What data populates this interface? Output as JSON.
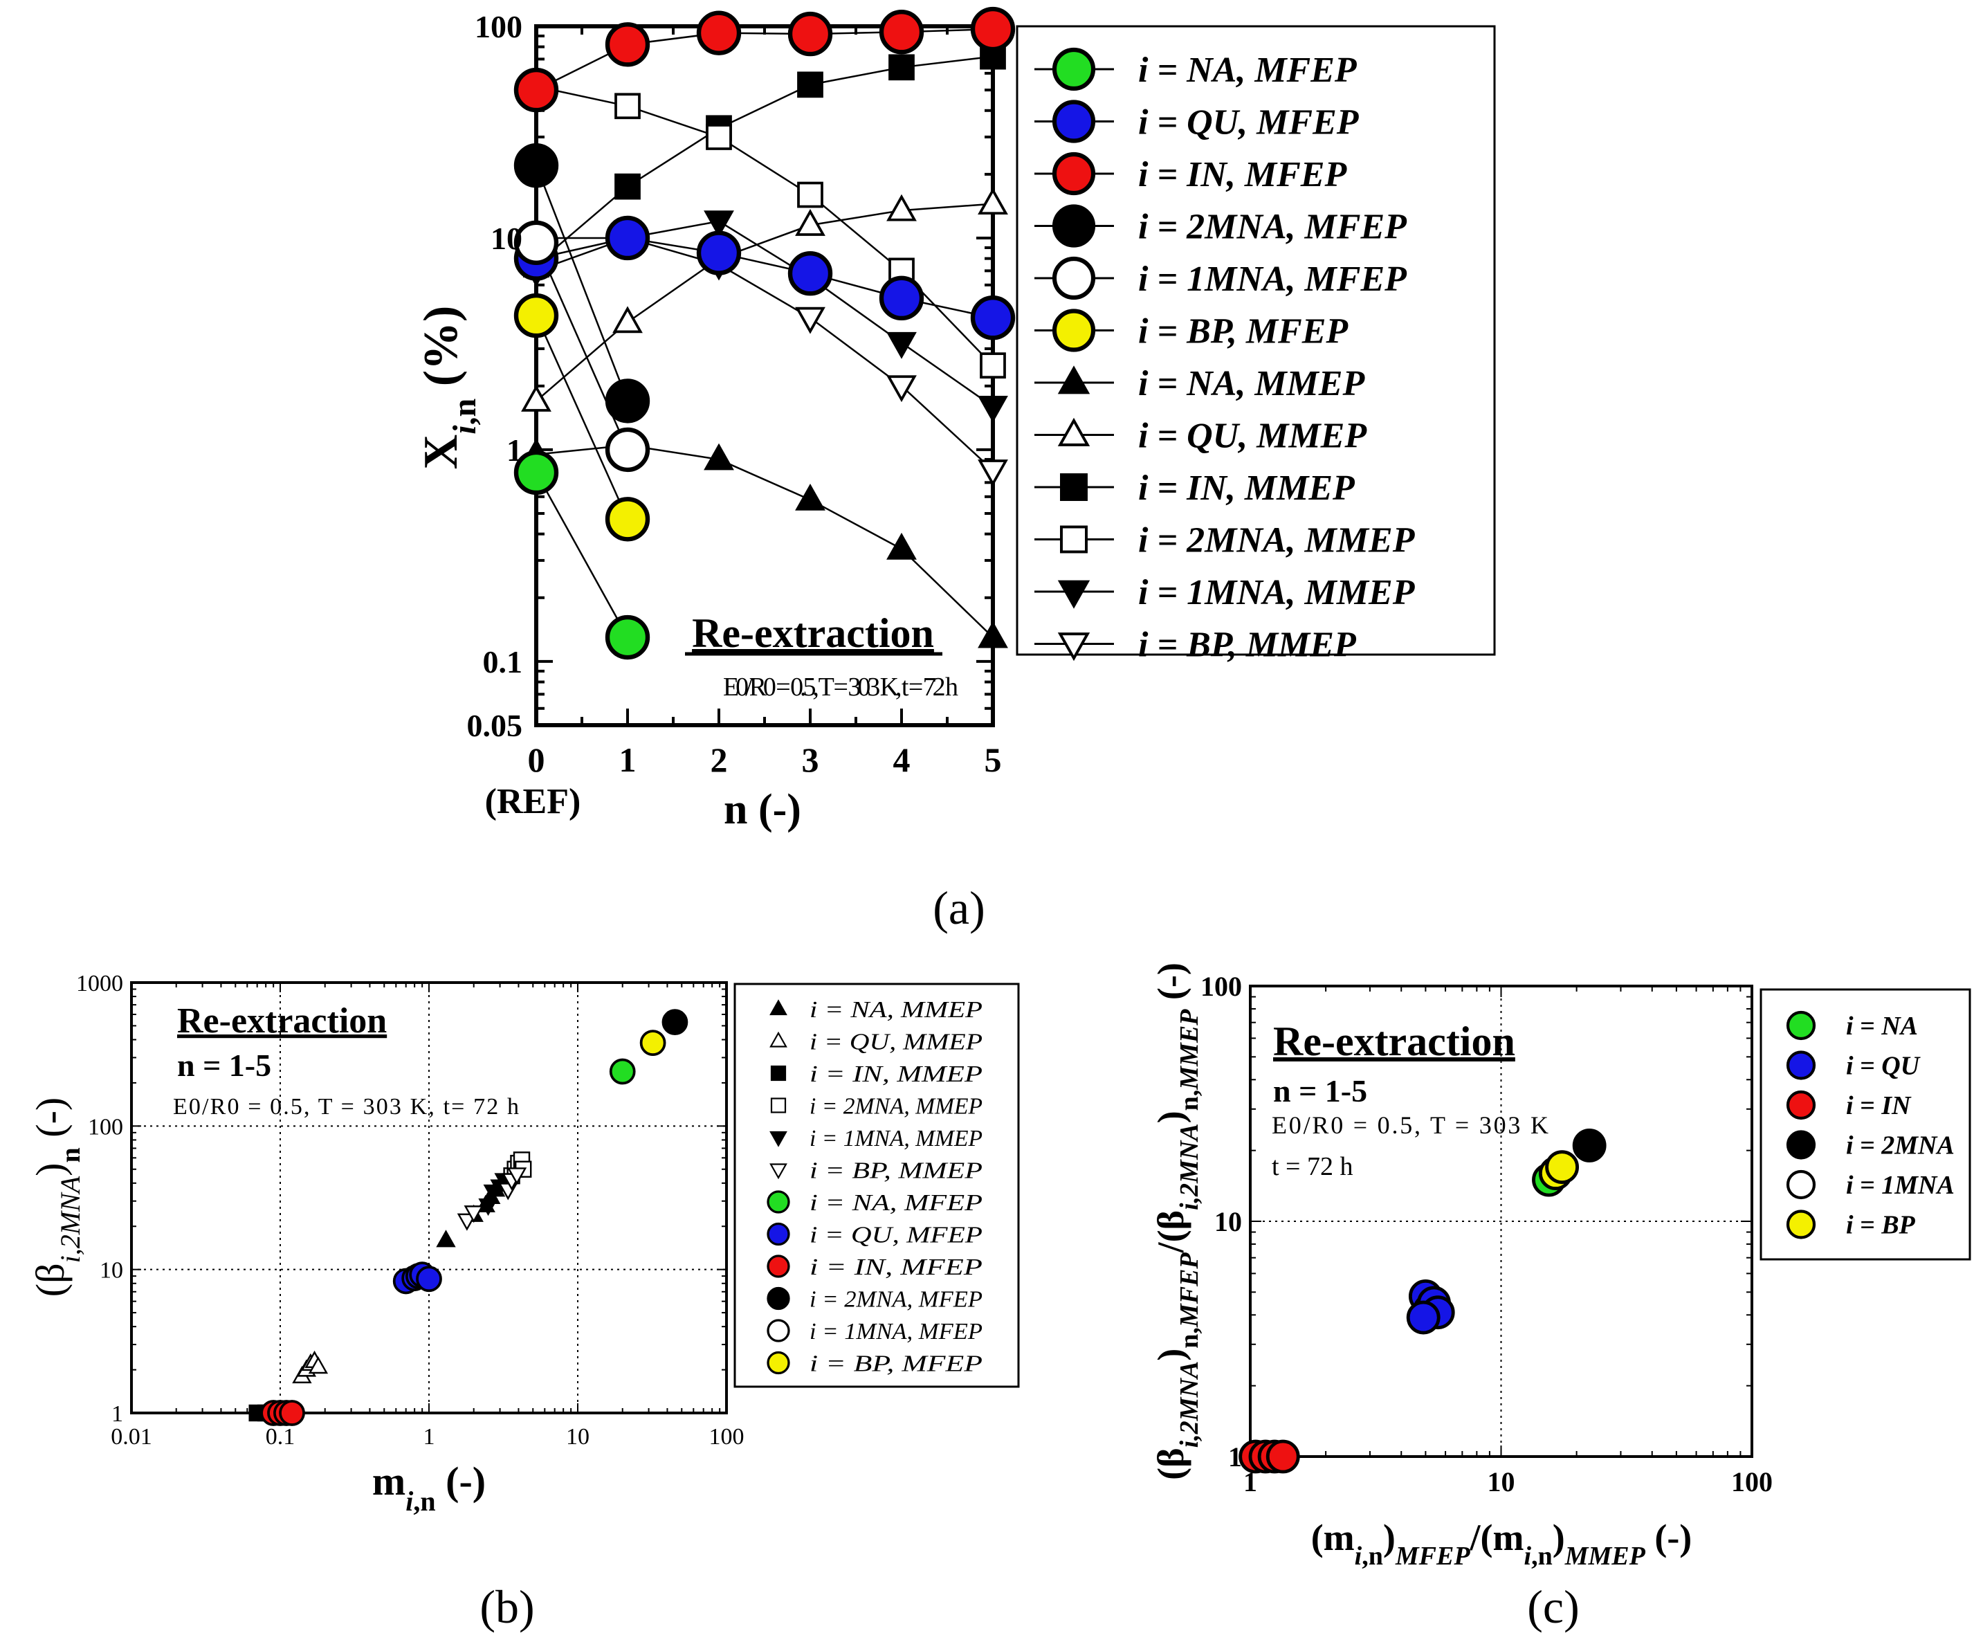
{
  "colors": {
    "NA": "#22dd22",
    "QU": "#1515e6",
    "IN": "#ee1111",
    "2MNA": "#000000",
    "1MNA": "#ffffff",
    "BP": "#f4f000"
  },
  "panels": {
    "a": {
      "label": "(a)",
      "title": "Re-extraction",
      "conditions": "E0/R0 = 0.5, T = 303 K, t = 72 h",
      "ref_label": "(REF)",
      "legend": [
        {
          "series": "NA_MFEP",
          "text": "i = NA, MFEP",
          "symbol": "circle",
          "color": "NA"
        },
        {
          "series": "QU_MFEP",
          "text": "i = QU, MFEP",
          "symbol": "circle",
          "color": "QU"
        },
        {
          "series": "IN_MFEP",
          "text": "i = IN, MFEP",
          "symbol": "circle",
          "color": "IN"
        },
        {
          "series": "2MNA_MFEP",
          "text": "i = 2MNA, MFEP",
          "symbol": "circle",
          "color": "2MNA"
        },
        {
          "series": "1MNA_MFEP",
          "text": "i = 1MNA, MFEP",
          "symbol": "circle",
          "color": "1MNA"
        },
        {
          "series": "BP_MFEP",
          "text": "i = BP, MFEP",
          "symbol": "circle",
          "color": "BP"
        },
        {
          "series": "NA_MMEP",
          "text": "i = NA, MMEP",
          "symbol": "tri-up-filled"
        },
        {
          "series": "QU_MMEP",
          "text": "i = QU, MMEP",
          "symbol": "tri-up-open"
        },
        {
          "series": "IN_MMEP",
          "text": "i = IN, MMEP",
          "symbol": "square-filled"
        },
        {
          "series": "2MNA_MMEP",
          "text": "i = 2MNA, MMEP",
          "symbol": "square-open"
        },
        {
          "series": "1MNA_MMEP",
          "text": "i = 1MNA, MMEP",
          "symbol": "tri-down-filled"
        },
        {
          "series": "BP_MMEP",
          "text": "i = BP, MMEP",
          "symbol": "tri-down-open"
        }
      ]
    },
    "b": {
      "label": "(b)",
      "title": "Re-extraction",
      "subtitle": "n = 1-5",
      "conditions": "E0/R0 = 0.5, T = 303 K, t= 72 h",
      "legend": [
        {
          "text": "i = NA, MMEP",
          "symbol": "tri-up-filled"
        },
        {
          "text": "i = QU, MMEP",
          "symbol": "tri-up-open"
        },
        {
          "text": "i = IN, MMEP",
          "symbol": "square-filled"
        },
        {
          "text": "i = 2MNA, MMEP",
          "symbol": "square-open"
        },
        {
          "text": "i = 1MNA, MMEP",
          "symbol": "tri-down-filled"
        },
        {
          "text": "i = BP, MMEP",
          "symbol": "tri-down-open"
        },
        {
          "text": "i = NA, MFEP",
          "symbol": "circle",
          "color": "NA"
        },
        {
          "text": "i = QU, MFEP",
          "symbol": "circle",
          "color": "QU"
        },
        {
          "text": "i = IN, MFEP",
          "symbol": "circle",
          "color": "IN"
        },
        {
          "text": "i = 2MNA, MFEP",
          "symbol": "circle",
          "color": "2MNA"
        },
        {
          "text": "i = 1MNA, MFEP",
          "symbol": "circle",
          "color": "1MNA"
        },
        {
          "text": "i = BP, MFEP",
          "symbol": "circle",
          "color": "BP"
        }
      ]
    },
    "c": {
      "label": "(c)",
      "title": "Re-extraction",
      "subtitle": "n = 1-5",
      "conditions": "E0/R0 = 0.5, T = 303 K",
      "time": "t = 72 h",
      "legend": [
        {
          "text": "i = NA",
          "color": "NA"
        },
        {
          "text": "i = QU",
          "color": "QU"
        },
        {
          "text": "i = IN",
          "color": "IN"
        },
        {
          "text": "i = 2MNA",
          "color": "2MNA"
        },
        {
          "text": "i = 1MNA",
          "color": "1MNA"
        },
        {
          "text": "i = BP",
          "color": "BP"
        }
      ]
    }
  },
  "chart_data": [
    {
      "id": "a",
      "type": "line",
      "xlabel": "n (-)",
      "ylabel": "Xi,n (%)",
      "yscale": "log",
      "xlim": [
        0,
        5
      ],
      "ylim": [
        0.05,
        100
      ],
      "x": [
        0,
        1,
        2,
        3,
        4,
        5
      ],
      "xticks": [
        "0",
        "1",
        "2",
        "3",
        "4",
        "5"
      ],
      "yticks": [
        "0.05",
        "0.1",
        "1",
        "10",
        "100"
      ],
      "series": [
        {
          "name": "NA_MFEP",
          "x": [
            0,
            1
          ],
          "values": [
            0.78,
            0.13
          ]
        },
        {
          "name": "QU_MFEP",
          "x": [
            0,
            1,
            2,
            3,
            4,
            5
          ],
          "values": [
            8,
            10,
            8.5,
            6.8,
            5.2,
            4.2
          ]
        },
        {
          "name": "IN_MFEP",
          "x": [
            0,
            1,
            2,
            3,
            4,
            5
          ],
          "values": [
            50,
            82,
            93,
            92,
            94,
            97
          ]
        },
        {
          "name": "2MNA_MFEP",
          "x": [
            0,
            1
          ],
          "values": [
            22,
            1.7
          ]
        },
        {
          "name": "1MNA_MFEP",
          "x": [
            0,
            1
          ],
          "values": [
            9.5,
            1.0
          ]
        },
        {
          "name": "BP_MFEP",
          "x": [
            0,
            1
          ],
          "values": [
            4.3,
            0.47
          ]
        },
        {
          "name": "NA_MMEP",
          "x": [
            0,
            1,
            2,
            3,
            4,
            5
          ],
          "values": [
            0.95,
            1.05,
            0.9,
            0.58,
            0.34,
            0.13
          ]
        },
        {
          "name": "QU_MMEP",
          "x": [
            0,
            1,
            2,
            3,
            4,
            5
          ],
          "values": [
            1.7,
            4.0,
            8.0,
            11.5,
            13.5,
            14.5
          ]
        },
        {
          "name": "IN_MMEP",
          "x": [
            0,
            1,
            2,
            3,
            4,
            5
          ],
          "values": [
            7.5,
            17.5,
            33,
            53,
            64,
            72
          ]
        },
        {
          "name": "2MNA_MMEP",
          "x": [
            0,
            1,
            2,
            3,
            4,
            5
          ],
          "values": [
            52,
            42,
            30,
            16,
            7,
            2.5
          ]
        },
        {
          "name": "1MNA_MMEP",
          "x": [
            0,
            1,
            2,
            3,
            4,
            5
          ],
          "values": [
            7,
            10,
            12,
            6.5,
            3.2,
            1.6
          ]
        },
        {
          "name": "BP_MMEP",
          "x": [
            0,
            1,
            2,
            3,
            4,
            5
          ],
          "values": [
            10,
            10,
            7.5,
            4.2,
            2.0,
            0.8
          ]
        }
      ]
    },
    {
      "id": "b",
      "type": "scatter",
      "xlabel": "mi,n (-)",
      "ylabel": "(βi,2MNA)n (-)",
      "xscale": "log",
      "yscale": "log",
      "xlim": [
        0.01,
        100
      ],
      "ylim": [
        1,
        1000
      ],
      "xticks": [
        "0.01",
        "0.1",
        "1",
        "10",
        "100"
      ],
      "yticks": [
        "1",
        "10",
        "100",
        "1000"
      ],
      "grid": true,
      "series": [
        {
          "name": "NA, MMEP",
          "x": [
            1.3,
            2.0,
            2.4,
            2.6,
            2.8
          ],
          "values": [
            16,
            24,
            28,
            32,
            36
          ]
        },
        {
          "name": "QU, MMEP",
          "x": [
            0.14,
            0.15,
            0.16,
            0.17,
            0.18
          ],
          "values": [
            1.8,
            2.0,
            2.2,
            2.3,
            2.1
          ]
        },
        {
          "name": "IN, MMEP",
          "x": [
            0.07,
            0.08,
            0.09,
            0.1,
            0.11
          ],
          "values": [
            1,
            1,
            1,
            1,
            1
          ]
        },
        {
          "name": "2MNA, MMEP",
          "x": [
            3.6,
            3.8,
            4.0,
            4.2,
            4.3
          ],
          "values": [
            45,
            50,
            55,
            58,
            50
          ]
        },
        {
          "name": "1MNA, MMEP",
          "x": [
            2.5,
            2.7,
            3.0,
            3.2,
            3.5
          ],
          "values": [
            28,
            35,
            38,
            42,
            40
          ]
        },
        {
          "name": "BP, MMEP",
          "x": [
            1.8,
            2.0,
            3.4,
            3.6,
            3.9
          ],
          "values": [
            22,
            25,
            36,
            42,
            46
          ]
        },
        {
          "name": "NA, MFEP",
          "x": [
            20
          ],
          "values": [
            240
          ]
        },
        {
          "name": "QU, MFEP",
          "x": [
            0.7,
            0.8,
            0.85,
            0.9,
            1.0
          ],
          "values": [
            8.3,
            8.7,
            9.0,
            9.2,
            8.6
          ]
        },
        {
          "name": "IN, MFEP",
          "x": [
            0.09,
            0.1,
            0.11,
            0.12
          ],
          "values": [
            1,
            1,
            1,
            1
          ]
        },
        {
          "name": "2MNA, MFEP",
          "x": [
            45
          ],
          "values": [
            530
          ]
        },
        {
          "name": "1MNA, MFEP",
          "x": [],
          "values": []
        },
        {
          "name": "BP, MFEP",
          "x": [
            32
          ],
          "values": [
            380
          ]
        }
      ]
    },
    {
      "id": "c",
      "type": "scatter",
      "xlabel": "(mi,n)MFEP/(mi,n)MMEP (-)",
      "ylabel": "(βi,2MNA)n,MFEP/(βi,2MNA)n,MMEP (-)",
      "xscale": "log",
      "yscale": "log",
      "xlim": [
        1,
        100
      ],
      "ylim": [
        1,
        100
      ],
      "xticks": [
        "1",
        "10",
        "100"
      ],
      "yticks": [
        "1",
        "10",
        "100"
      ],
      "grid": true,
      "series": [
        {
          "name": "NA",
          "x": [
            15.5
          ],
          "values": [
            15
          ]
        },
        {
          "name": "QU",
          "x": [
            5.0,
            5.2,
            5.4,
            5.6,
            4.9
          ],
          "values": [
            4.8,
            4.2,
            4.5,
            4.1,
            3.9
          ]
        },
        {
          "name": "IN",
          "x": [
            1.05,
            1.15,
            1.25,
            1.35
          ],
          "values": [
            1,
            1,
            1,
            1
          ]
        },
        {
          "name": "2MNA",
          "x": [
            22.5
          ],
          "values": [
            21
          ]
        },
        {
          "name": "1MNA",
          "x": [],
          "values": []
        },
        {
          "name": "BP",
          "x": [
            16.5,
            17.5
          ],
          "values": [
            16,
            17
          ]
        }
      ]
    }
  ]
}
